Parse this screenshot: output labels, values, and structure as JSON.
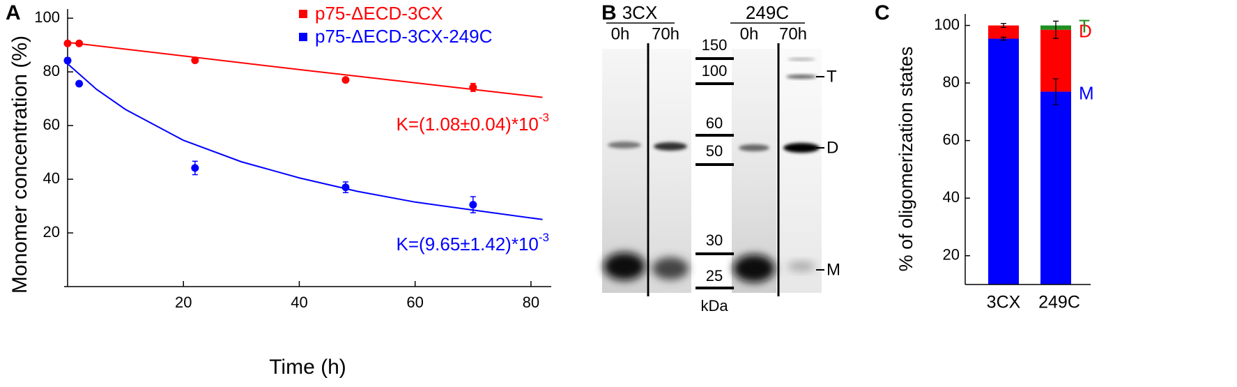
{
  "chart_data": [
    {
      "type": "scatter",
      "panel": "A",
      "xlabel": "Time (h)",
      "ylabel": "Monomer concentration (%)",
      "xlim": [
        -0.6,
        83.5
      ],
      "ylim": [
        0,
        103.4
      ],
      "xticks": [
        20,
        40,
        60,
        80
      ],
      "yticks": [
        20,
        40,
        60,
        80,
        100
      ],
      "series": [
        {
          "name": "p75-ΔECD-3CX",
          "color": "#ff0000",
          "x": [
            0,
            2,
            22,
            48,
            70
          ],
          "values": [
            90.6,
            90.6,
            84.3,
            77,
            74.2
          ],
          "errors": [
            0.5,
            0.5,
            0.5,
            0.6,
            1.5
          ],
          "fit": {
            "x": [
              0,
              41,
              82
            ],
            "values": [
              91,
              80.6,
              70.5
            ]
          },
          "annotation": {
            "text": "K=(1.08±0.04)*10",
            "sup": "-3"
          }
        },
        {
          "name": "p75-ΔECD-3CX-249C",
          "color": "#0000ff",
          "x": [
            0,
            2,
            22,
            48,
            70
          ],
          "values": [
            84.2,
            75.6,
            44.2,
            37,
            30.5
          ],
          "errors": [
            1,
            0.5,
            2.5,
            2,
            3
          ],
          "fit": {
            "x": [
              0,
              5,
              10,
              20,
              30,
              40,
              50,
              60,
              70,
              82
            ],
            "values": [
              83,
              73.5,
              66,
              54.5,
              46.5,
              40.5,
              35.5,
              31.5,
              28.5,
              25
            ]
          },
          "annotation": {
            "text": "K=(9.65±1.42)*10",
            "sup": "-3"
          }
        }
      ]
    },
    {
      "type": "stacked_bar",
      "panel": "C",
      "ylabel": "% of oligomerization states",
      "categories": [
        "3CX",
        "249C"
      ],
      "ylim": [
        10,
        104
      ],
      "yticks": [
        20,
        40,
        60,
        80,
        100
      ],
      "series": [
        {
          "name": "M",
          "color": "#0000ff",
          "values": [
            95.4,
            77
          ],
          "errors": [
            0.5,
            4.5
          ]
        },
        {
          "name": "D",
          "color": "#ff0000",
          "values": [
            4.6,
            21.5
          ],
          "errors": [
            0.7,
            3
          ]
        },
        {
          "name": "T",
          "color": "#1f8f1f",
          "values": [
            0,
            1.5
          ]
        }
      ]
    }
  ],
  "gel": {
    "panel": "B",
    "groups": [
      {
        "name": "3CX",
        "lanes": [
          "0h",
          "70h"
        ]
      },
      {
        "name": "249C",
        "lanes": [
          "0h",
          "70h"
        ]
      }
    ],
    "ladder": [
      "150",
      "100",
      "60",
      "50",
      "30",
      "25"
    ],
    "ladder_unit": "kDa",
    "bands": [
      "T",
      "D",
      "M"
    ]
  }
}
